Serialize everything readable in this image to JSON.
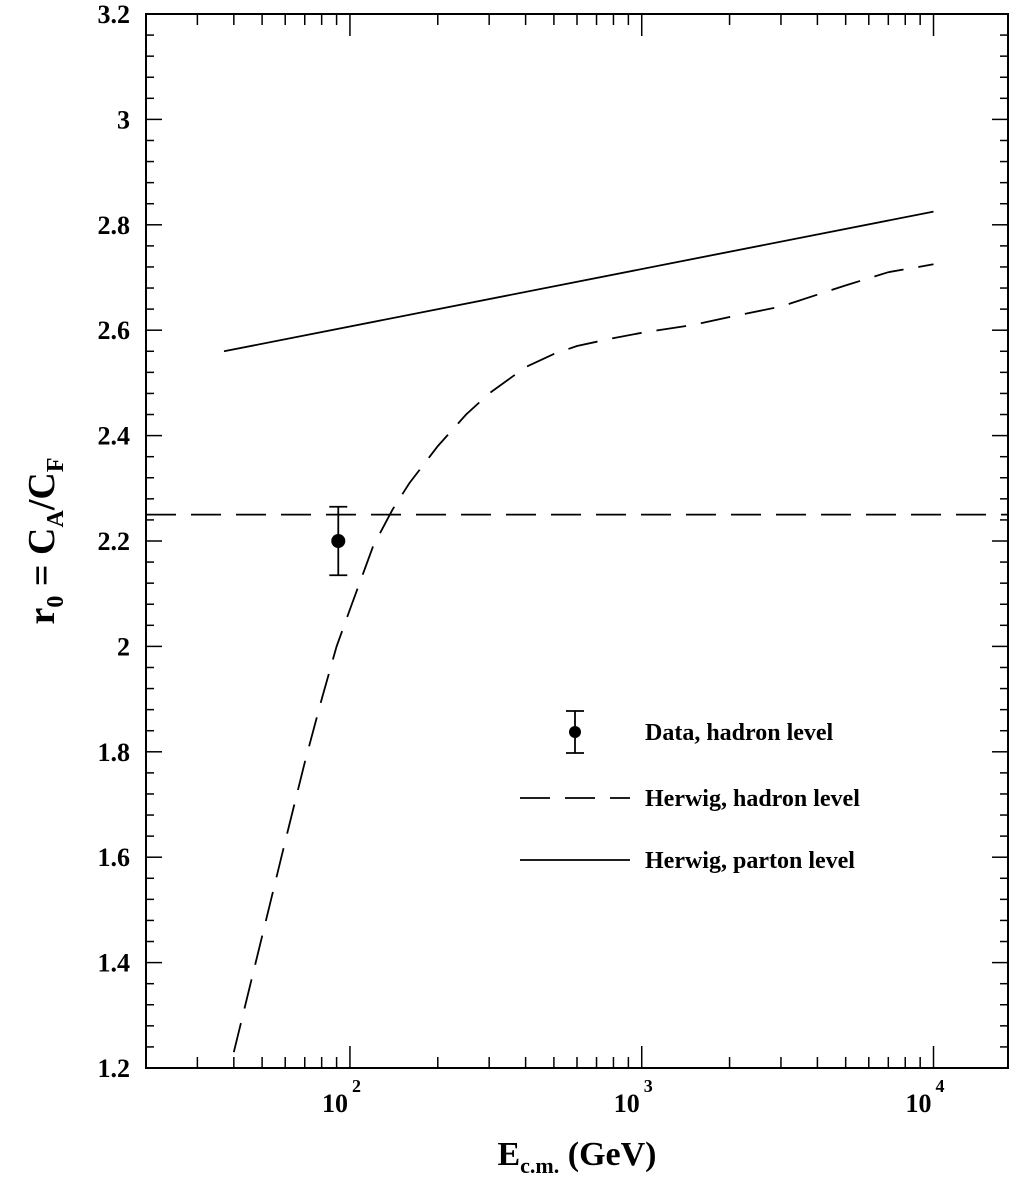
{
  "chart_data": {
    "type": "line",
    "xlabel": {
      "main": "E",
      "sub": "c.m.",
      "rest": " (GeV)"
    },
    "ylabel": {
      "r": "r",
      "r_sub": "0",
      "eq": " = C",
      "a_sub": "A",
      "slash": "/C",
      "f_sub": "F"
    },
    "x_scale": "log",
    "xlim": [
      20,
      18000
    ],
    "ylim": [
      1.2,
      3.2
    ],
    "grid": false,
    "legend_position": "center-right",
    "x_ticks": [
      {
        "value": 100,
        "base": "10",
        "exp": "2"
      },
      {
        "value": 1000,
        "base": "10",
        "exp": "3"
      },
      {
        "value": 10000,
        "base": "10",
        "exp": "4"
      }
    ],
    "y_ticks": [
      "1.2",
      "1.4",
      "1.6",
      "1.8",
      "2",
      "2.2",
      "2.4",
      "2.6",
      "2.8",
      "3",
      "3.2"
    ],
    "series": [
      {
        "name": "Data, hadron level",
        "kind": "points",
        "points": [
          {
            "x": 91.2,
            "y": 2.2,
            "err": 0.065
          }
        ]
      },
      {
        "name": "Herwig, hadron level",
        "kind": "dashed",
        "x": [
          40,
          50,
          60,
          70,
          80,
          90,
          100,
          120,
          140,
          160,
          200,
          250,
          300,
          400,
          500,
          600,
          800,
          1000,
          1500,
          2000,
          3000,
          5000,
          7000,
          10000
        ],
        "y": [
          1.23,
          1.45,
          1.63,
          1.78,
          1.9,
          2.0,
          2.07,
          2.19,
          2.26,
          2.31,
          2.38,
          2.44,
          2.48,
          2.53,
          2.555,
          2.57,
          2.585,
          2.595,
          2.61,
          2.625,
          2.645,
          2.685,
          2.71,
          2.725
        ]
      },
      {
        "name": "Herwig, parton level",
        "kind": "solid",
        "x": [
          37,
          10000
        ],
        "y": [
          2.56,
          2.825
        ]
      }
    ],
    "reference_line": {
      "y": 2.25,
      "style": "dashed"
    }
  }
}
